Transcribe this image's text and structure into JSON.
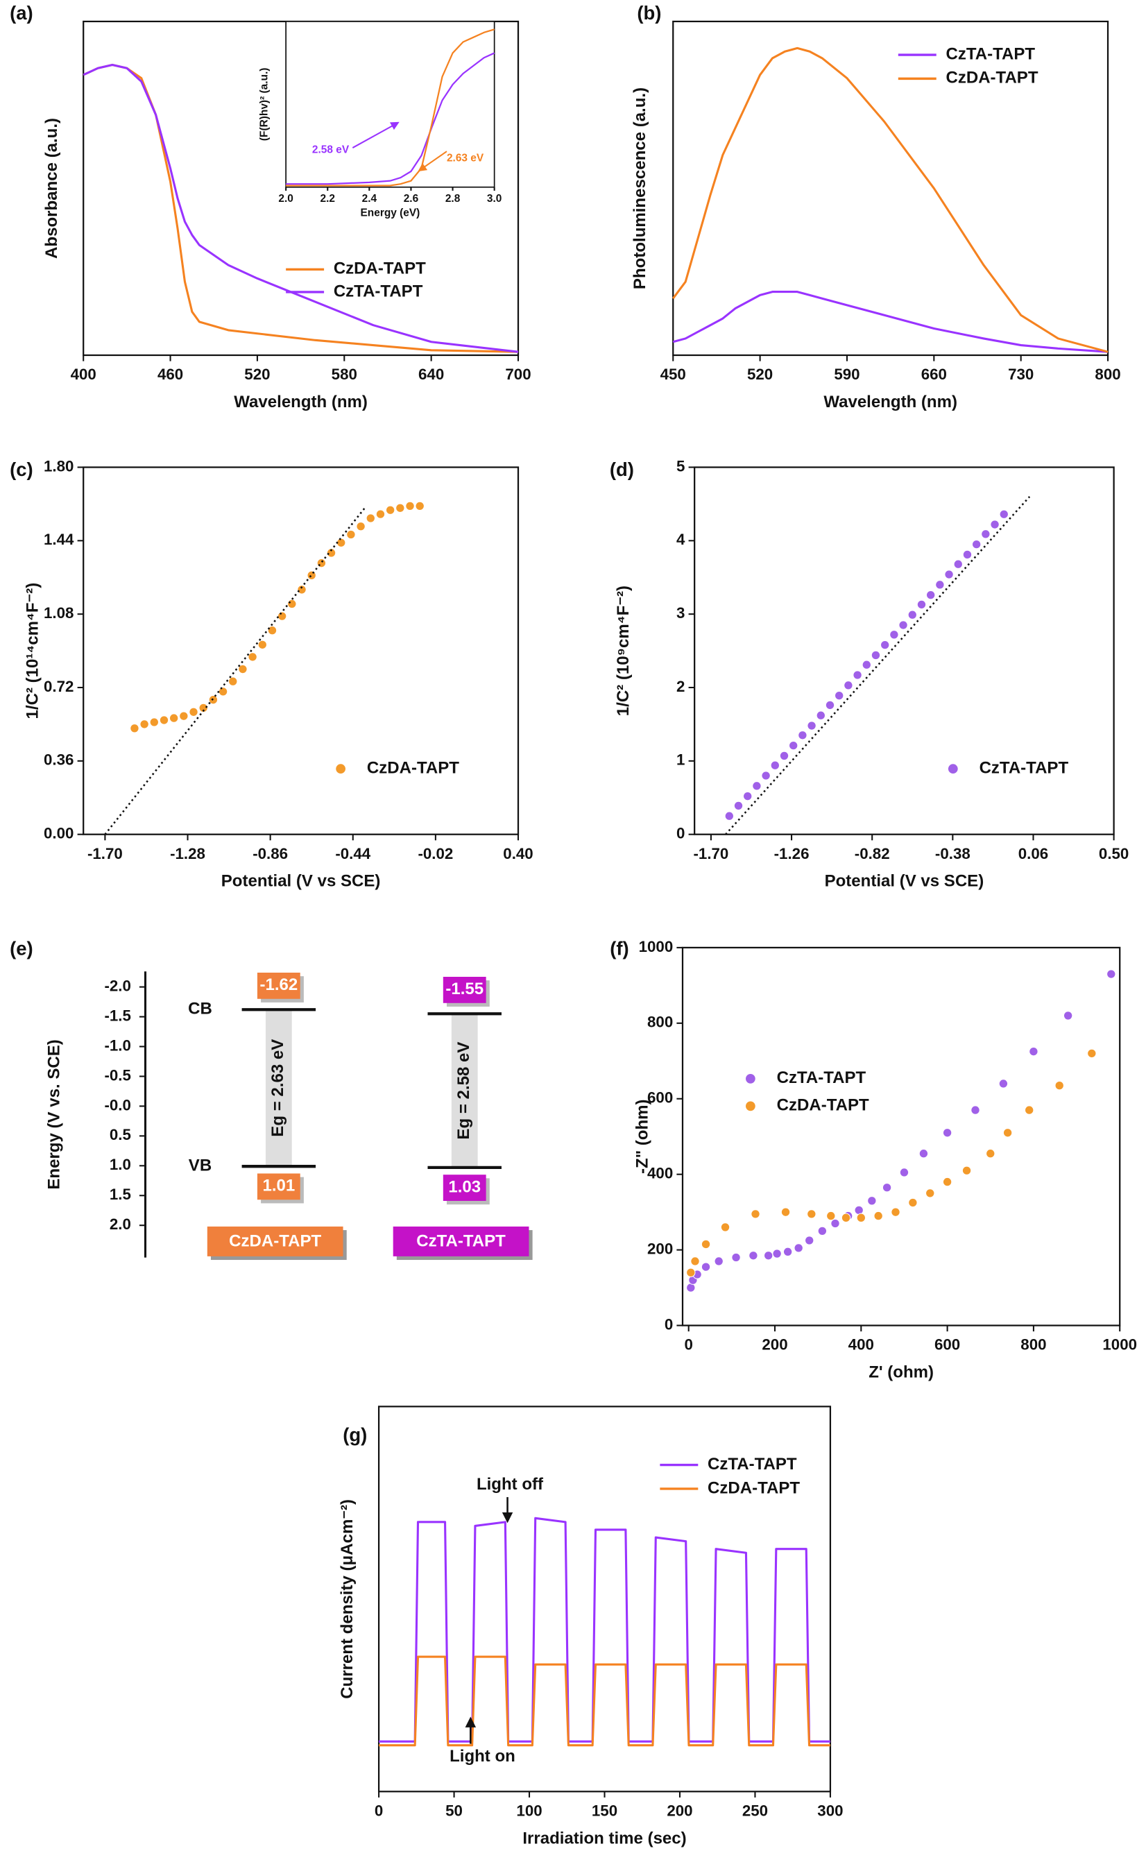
{
  "chart_data": [
    {
      "panel": "(a)",
      "type": "line",
      "xlabel": "Wavelength (nm)",
      "ylabel": "Absorbance (a.u.)",
      "xlim": [
        400,
        700
      ],
      "xticks": [
        400,
        460,
        520,
        580,
        640,
        700
      ],
      "ylim": [
        0,
        1
      ],
      "x": [
        400,
        410,
        420,
        430,
        440,
        450,
        460,
        465,
        470,
        475,
        480,
        500,
        520,
        560,
        600,
        640,
        700
      ],
      "series": [
        {
          "name": "CzDA-TAPT",
          "color": "#f58220",
          "values": [
            0.84,
            0.86,
            0.87,
            0.86,
            0.83,
            0.72,
            0.52,
            0.38,
            0.22,
            0.13,
            0.1,
            0.075,
            0.065,
            0.045,
            0.03,
            0.015,
            0.01
          ]
        },
        {
          "name": "CzTA-TAPT",
          "color": "#9933ff",
          "values": [
            0.84,
            0.86,
            0.87,
            0.86,
            0.82,
            0.72,
            0.56,
            0.47,
            0.4,
            0.36,
            0.33,
            0.27,
            0.23,
            0.16,
            0.09,
            0.04,
            0.01
          ]
        }
      ],
      "inset": {
        "type": "line",
        "xlabel": "Energy (eV)",
        "ylabel": "(F(R)hv)² (a.u.)",
        "xlim": [
          2.0,
          3.0
        ],
        "xticks": [
          {
            "value": 2.0,
            "label": "2.0"
          },
          2.2,
          2.4,
          2.6,
          2.8,
          {
            "value": 3.0,
            "label": "3.0"
          }
        ],
        "ylim": [
          0,
          1.05
        ],
        "x": [
          2.0,
          2.2,
          2.4,
          2.5,
          2.55,
          2.6,
          2.65,
          2.7,
          2.75,
          2.8,
          2.85,
          2.9,
          2.95,
          3.0
        ],
        "series": [
          {
            "name": "CzTA-TAPT",
            "color": "#9933ff",
            "values": [
              0.02,
              0.02,
              0.03,
              0.04,
              0.06,
              0.1,
              0.2,
              0.38,
              0.55,
              0.65,
              0.72,
              0.77,
              0.82,
              0.85
            ]
          },
          {
            "name": "CzDA-TAPT",
            "color": "#f58220",
            "values": [
              0.01,
              0.01,
              0.01,
              0.01,
              0.02,
              0.04,
              0.12,
              0.4,
              0.7,
              0.85,
              0.92,
              0.95,
              0.98,
              1.0
            ]
          }
        ],
        "annotations": [
          "2.58 eV",
          "2.63 eV"
        ]
      }
    },
    {
      "panel": "(b)",
      "type": "line",
      "xlabel": "Wavelength (nm)",
      "ylabel": "Photoluminescence (a.u.)",
      "xlim": [
        450,
        800
      ],
      "xticks": [
        450,
        520,
        590,
        660,
        730,
        800
      ],
      "ylim": [
        0,
        1
      ],
      "x": [
        450,
        460,
        470,
        480,
        490,
        500,
        510,
        520,
        530,
        540,
        550,
        560,
        570,
        590,
        620,
        660,
        700,
        730,
        760,
        800
      ],
      "series": [
        {
          "name": "CzTA-TAPT",
          "color": "#9933ff",
          "values": [
            0.04,
            0.05,
            0.07,
            0.09,
            0.11,
            0.14,
            0.16,
            0.18,
            0.19,
            0.19,
            0.19,
            0.18,
            0.17,
            0.15,
            0.12,
            0.08,
            0.05,
            0.03,
            0.02,
            0.01
          ]
        },
        {
          "name": "CzDA-TAPT",
          "color": "#f58220",
          "values": [
            0.17,
            0.22,
            0.35,
            0.48,
            0.6,
            0.68,
            0.76,
            0.84,
            0.89,
            0.91,
            0.92,
            0.91,
            0.89,
            0.83,
            0.7,
            0.5,
            0.27,
            0.12,
            0.05,
            0.01
          ]
        }
      ]
    },
    {
      "panel": "(c)",
      "type": "scatter",
      "xlabel": "Potential (V vs SCE)",
      "ylabel": "1/C² (10¹⁴cm⁴F⁻²)",
      "xlim": [
        -1.81,
        0.4
      ],
      "xticks": [
        {
          "value": -1.7,
          "label": "-1.70"
        },
        -1.28,
        -0.86,
        -0.44,
        -0.02,
        {
          "value": 0.4,
          "label": "0.40"
        }
      ],
      "ylim": [
        0,
        1.8
      ],
      "yticks": [
        {
          "value": 0,
          "label": "0.00"
        },
        0.36,
        0.72,
        1.08,
        1.44,
        {
          "value": 1.8,
          "label": "1.80"
        }
      ],
      "series": [
        {
          "name": "CzDA-TAPT",
          "color": "#f39a2a",
          "x": [
            -1.55,
            -1.5,
            -1.45,
            -1.4,
            -1.35,
            -1.3,
            -1.25,
            -1.2,
            -1.15,
            -1.1,
            -1.05,
            -1.0,
            -0.95,
            -0.9,
            -0.85,
            -0.8,
            -0.75,
            -0.7,
            -0.65,
            -0.6,
            -0.55,
            -0.5,
            -0.45,
            -0.4,
            -0.35,
            -0.3,
            -0.25,
            -0.2,
            -0.15,
            -0.1
          ],
          "values": [
            0.52,
            0.54,
            0.55,
            0.56,
            0.57,
            0.58,
            0.6,
            0.62,
            0.66,
            0.7,
            0.75,
            0.81,
            0.87,
            0.93,
            1.0,
            1.07,
            1.13,
            1.2,
            1.27,
            1.33,
            1.38,
            1.43,
            1.47,
            1.51,
            1.55,
            1.57,
            1.59,
            1.6,
            1.61,
            1.61
          ]
        }
      ],
      "fit": {
        "x": [
          -1.7,
          -0.38
        ],
        "y": [
          0,
          1.6
        ]
      }
    },
    {
      "panel": "(d)",
      "type": "scatter",
      "xlabel": "Potential (V vs SCE)",
      "ylabel": "1/C² (10⁹cm⁴F⁻²)",
      "xlim": [
        -1.79,
        0.5
      ],
      "xticks": [
        {
          "value": -1.7,
          "label": "-1.70"
        },
        -1.26,
        -0.82,
        -0.38,
        0.06,
        {
          "value": 0.5,
          "label": "0.50"
        }
      ],
      "ylim": [
        0,
        5
      ],
      "yticks": [
        0,
        1,
        2,
        3,
        4,
        5
      ],
      "series": [
        {
          "name": "CzTA-TAPT",
          "color": "#a060e8",
          "x": [
            -1.6,
            -1.55,
            -1.5,
            -1.45,
            -1.4,
            -1.35,
            -1.3,
            -1.25,
            -1.2,
            -1.15,
            -1.1,
            -1.05,
            -1.0,
            -0.95,
            -0.9,
            -0.85,
            -0.8,
            -0.75,
            -0.7,
            -0.65,
            -0.6,
            -0.55,
            -0.5,
            -0.45,
            -0.4,
            -0.35,
            -0.3,
            -0.25,
            -0.2,
            -0.15,
            -0.1
          ],
          "values": [
            0.25,
            0.39,
            0.52,
            0.66,
            0.8,
            0.94,
            1.07,
            1.21,
            1.35,
            1.48,
            1.62,
            1.76,
            1.89,
            2.03,
            2.17,
            2.31,
            2.44,
            2.58,
            2.72,
            2.85,
            2.99,
            3.13,
            3.26,
            3.4,
            3.54,
            3.68,
            3.81,
            3.95,
            4.09,
            4.22,
            4.36
          ]
        }
      ],
      "fit": {
        "x": [
          -1.62,
          0.04
        ],
        "y": [
          0,
          4.6
        ]
      }
    },
    {
      "panel": "(e)",
      "type": "energy_diagram",
      "ylabel": "Energy (V vs. SCE)",
      "ylim": [
        -2.26,
        2.54
      ],
      "yticks": [
        {
          "value": -2,
          "label": "-2.0"
        },
        -1.5,
        {
          "value": -1,
          "label": "-1.0"
        },
        -0.5,
        {
          "value": 0,
          "label": "-0.0"
        },
        0.5,
        {
          "value": 1,
          "label": "1.0"
        },
        1.5,
        {
          "value": 2,
          "label": "2.0"
        }
      ],
      "band_labels": [
        "CB",
        "VB"
      ],
      "materials": [
        {
          "name": "CzDA-TAPT",
          "color": "#f0803c",
          "cb": -1.62,
          "vb": 1.01,
          "gap_label": "Eg = 2.63 eV"
        },
        {
          "name": "CzTA-TAPT",
          "color": "#c412c8",
          "cb": -1.55,
          "vb": 1.03,
          "gap_label": "Eg = 2.58 eV"
        }
      ]
    },
    {
      "panel": "(f)",
      "type": "scatter",
      "xlabel": "Z' (ohm)",
      "ylabel": "-Z\" (ohm)",
      "xlim": [
        -14,
        1000
      ],
      "xticks": [
        0,
        200,
        400,
        600,
        800,
        1000
      ],
      "ylim": [
        0,
        1000
      ],
      "yticks": [
        0,
        200,
        400,
        600,
        800,
        1000
      ],
      "series": [
        {
          "name": "CzTA-TAPT",
          "color": "#a060e8",
          "x": [
            5,
            10,
            20,
            40,
            70,
            110,
            150,
            185,
            205,
            230,
            255,
            280,
            310,
            340,
            370,
            395,
            425,
            460,
            500,
            545,
            600,
            665,
            730,
            800,
            880,
            980
          ],
          "values": [
            100,
            120,
            135,
            155,
            170,
            180,
            185,
            185,
            190,
            195,
            205,
            225,
            250,
            270,
            290,
            305,
            330,
            365,
            405,
            455,
            510,
            570,
            640,
            725,
            820,
            930
          ]
        },
        {
          "name": "CzDA-TAPT",
          "color": "#f39a2a",
          "x": [
            5,
            15,
            40,
            85,
            155,
            225,
            285,
            330,
            365,
            400,
            440,
            480,
            520,
            560,
            600,
            645,
            700,
            740,
            790,
            860,
            935
          ],
          "values": [
            140,
            170,
            215,
            260,
            295,
            300,
            295,
            290,
            285,
            285,
            290,
            300,
            325,
            350,
            380,
            410,
            455,
            510,
            570,
            635,
            720
          ]
        }
      ]
    },
    {
      "panel": "(g)",
      "type": "line",
      "xlabel": "Irradiation time (sec)",
      "ylabel": "Current density (μAcm⁻²)",
      "xlim": [
        0,
        300
      ],
      "xticks": [
        0,
        50,
        100,
        150,
        200,
        250,
        300
      ],
      "ylim": [
        0,
        1
      ],
      "x": [
        0,
        24,
        26,
        44,
        46,
        62,
        64,
        84,
        86,
        102,
        104,
        124,
        126,
        142,
        144,
        164,
        166,
        182,
        184,
        204,
        206,
        222,
        224,
        244,
        246,
        262,
        264,
        284,
        286,
        300
      ],
      "series": [
        {
          "name": "CzTA-TAPT",
          "color": "#9933ff",
          "values": [
            0.13,
            0.13,
            0.7,
            0.7,
            0.13,
            0.13,
            0.69,
            0.7,
            0.13,
            0.13,
            0.71,
            0.7,
            0.13,
            0.13,
            0.68,
            0.68,
            0.13,
            0.13,
            0.66,
            0.65,
            0.13,
            0.13,
            0.63,
            0.62,
            0.13,
            0.13,
            0.63,
            0.63,
            0.13,
            0.13
          ]
        },
        {
          "name": "CzDA-TAPT",
          "color": "#f58220",
          "values": [
            0.12,
            0.12,
            0.35,
            0.35,
            0.12,
            0.12,
            0.35,
            0.35,
            0.12,
            0.12,
            0.33,
            0.33,
            0.12,
            0.12,
            0.33,
            0.33,
            0.12,
            0.12,
            0.33,
            0.33,
            0.12,
            0.12,
            0.33,
            0.33,
            0.12,
            0.12,
            0.33,
            0.33,
            0.12,
            0.12
          ]
        }
      ],
      "annotations": [
        "Light off",
        "Light on"
      ]
    }
  ]
}
